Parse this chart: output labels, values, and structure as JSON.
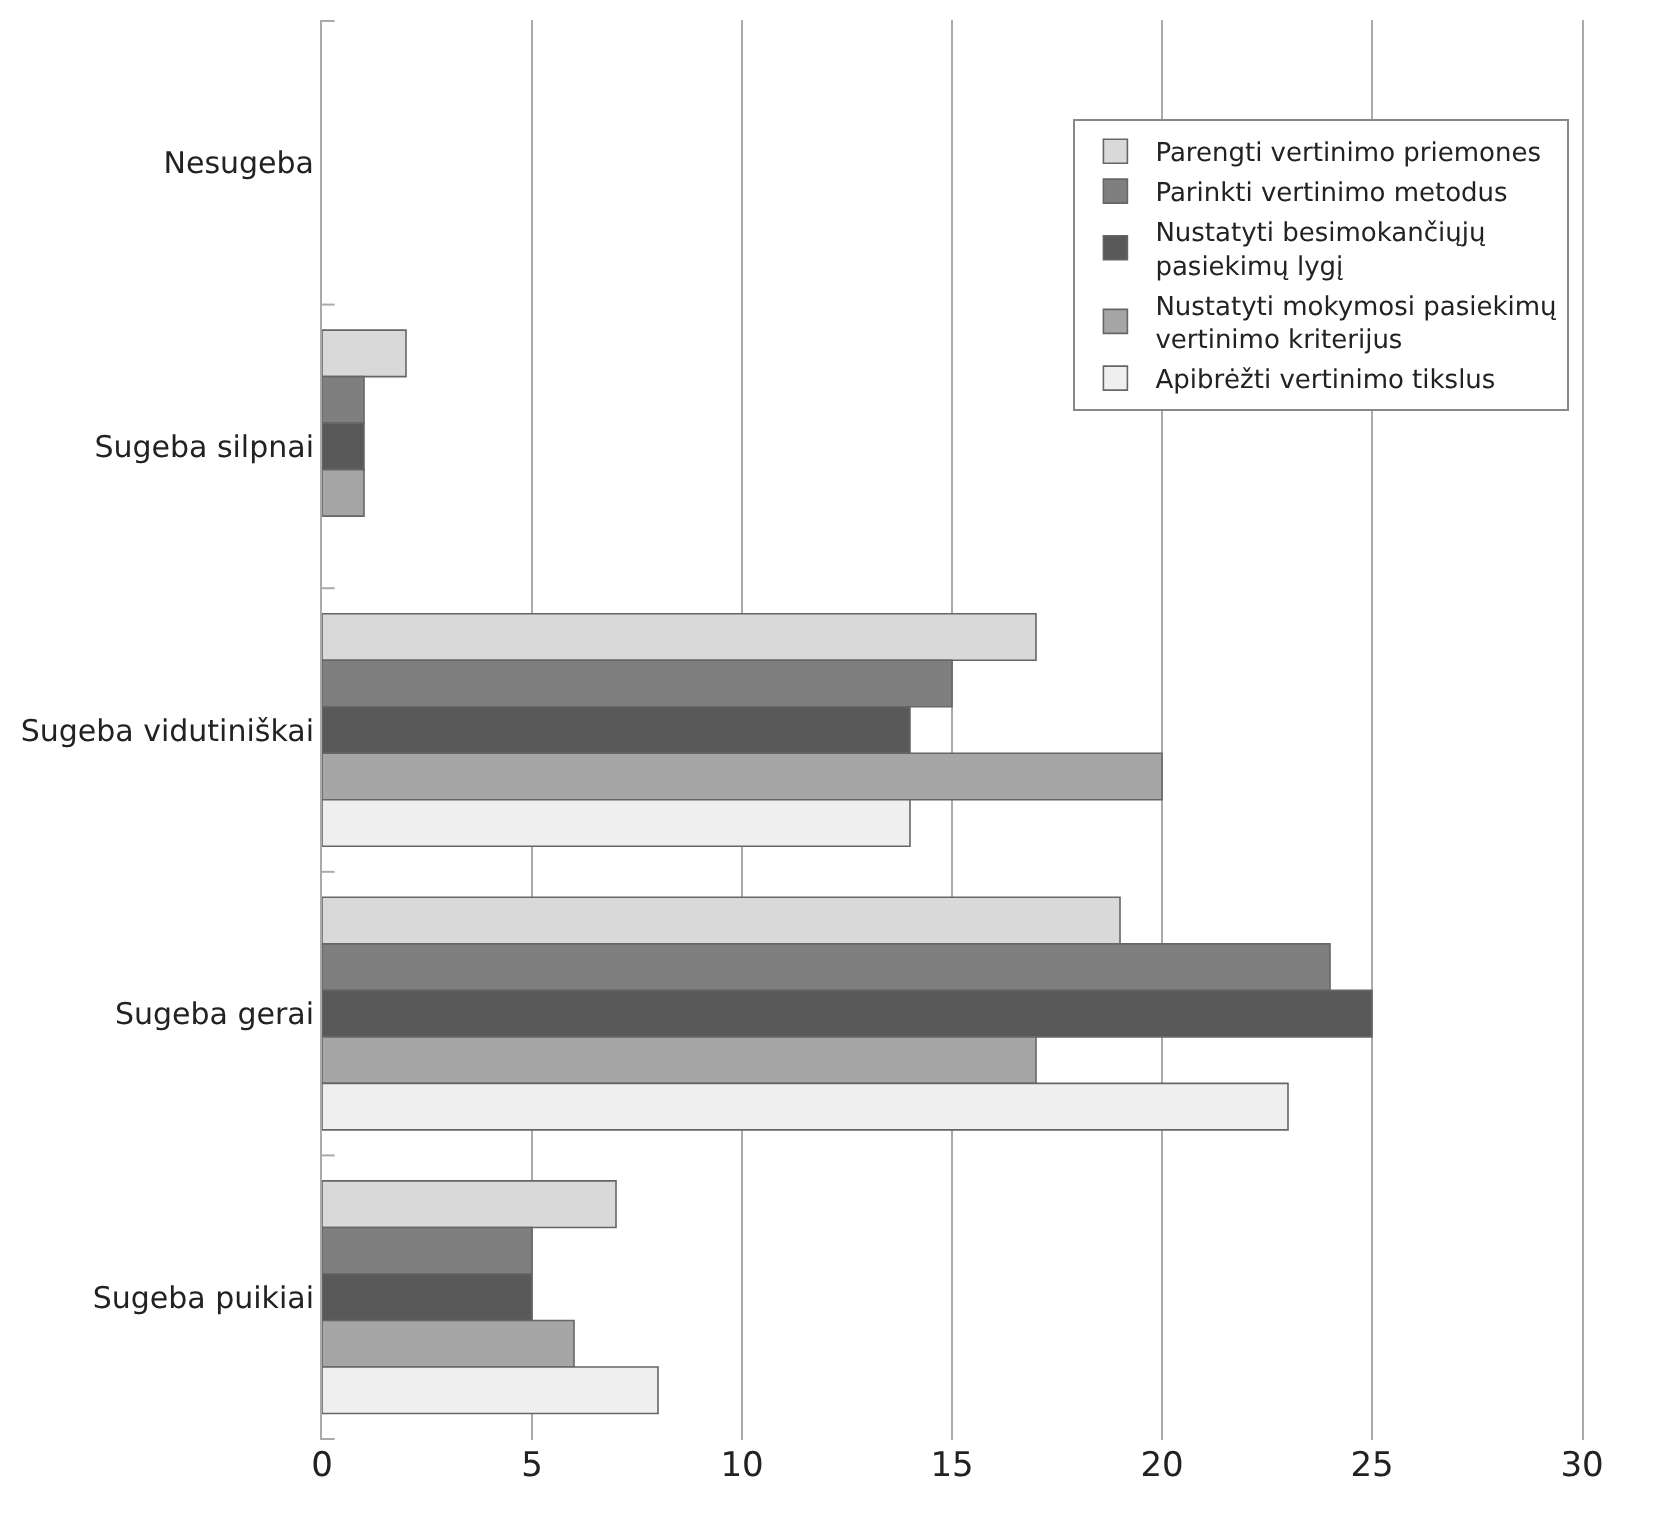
{
  "chart_data": {
    "type": "bar",
    "orientation": "horizontal",
    "categories": [
      "Nesugeba",
      "Sugeba silpnai",
      "Sugeba vidutiniškai",
      "Sugeba gerai",
      "Sugeba puikiai"
    ],
    "series": [
      {
        "name": "Parengti vertinimo priemones",
        "color": "#d9d9d9",
        "values": [
          0,
          2,
          17,
          19,
          7
        ]
      },
      {
        "name": "Parinkti vertinimo metodus",
        "color": "#7f7f7f",
        "values": [
          0,
          1,
          15,
          24,
          5
        ]
      },
      {
        "name": "Nustatyti besimokančiųjų pasiekimų lygį",
        "color": "#595959",
        "values": [
          0,
          1,
          14,
          25,
          5
        ]
      },
      {
        "name": "Nustatyti mokymosi pasiekimų vertinimo kriterijus",
        "color": "#a6a6a6",
        "values": [
          0,
          1,
          20,
          17,
          6
        ]
      },
      {
        "name": "Apibrėžti vertinimo tikslus",
        "color": "#efefef",
        "values": [
          0,
          0,
          14,
          23,
          8
        ]
      }
    ],
    "xlim": [
      0,
      30
    ],
    "xticks": [
      0,
      5,
      10,
      15,
      20,
      25,
      30
    ],
    "grid": "x",
    "legend": "top right"
  }
}
